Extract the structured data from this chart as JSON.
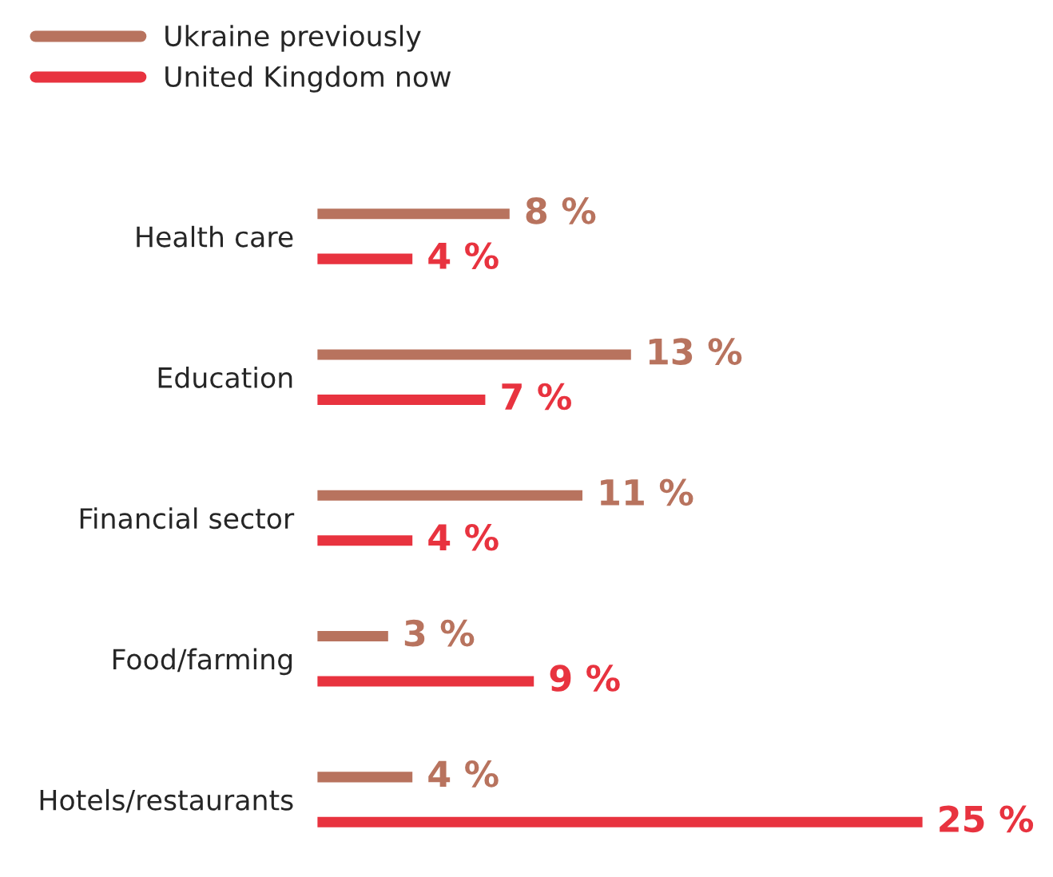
{
  "chart_data": {
    "type": "bar",
    "orientation": "horizontal",
    "categories": [
      "Health care",
      "Education",
      "Financial sector",
      "Food/farming",
      "Hotels/restaurants"
    ],
    "series": [
      {
        "name": "Ukraine previously",
        "color": "#b8735e",
        "values": [
          8,
          13,
          11,
          3,
          4
        ],
        "value_labels": [
          "8 %",
          "13 %",
          "11 %",
          "3 %",
          "4 %"
        ]
      },
      {
        "name": "United Kingdom now",
        "color": "#e8333f",
        "values": [
          4,
          7,
          4,
          9,
          25
        ],
        "value_labels": [
          "4 %",
          "7 %",
          "4 %",
          "9 %",
          "25 %"
        ]
      }
    ],
    "legend": "top left",
    "grid": false
  }
}
